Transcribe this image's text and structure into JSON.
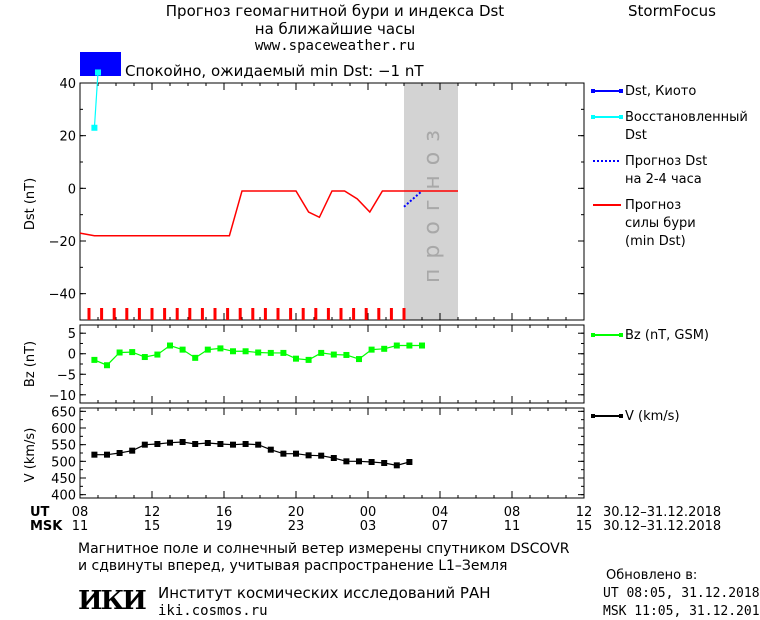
{
  "header": {
    "title_line1": "Прогноз геомагнитной бури и индекса Dst",
    "title_line2": "на ближайшие часы",
    "site": "www.spaceweather.ru",
    "brand": "StormFocus"
  },
  "status": {
    "text": "Спокойно, ожидаемый min Dst: −1 nT",
    "color": "#0000ff"
  },
  "forecast_label": "прогноз",
  "chart_data": [
    {
      "type": "line",
      "ylabel": "Dst (nT)",
      "ylim": [
        -50,
        40
      ],
      "yticks": [
        40,
        20,
        0,
        -20,
        -40
      ],
      "xlim": [
        0,
        28
      ],
      "forecast_region": [
        18,
        21
      ],
      "series": [
        {
          "name": "Dst, Киото",
          "color": "#0000ff",
          "x": [],
          "y": []
        },
        {
          "name": "Восстановленный Dst",
          "color": "#00ffff",
          "x": [
            0.8,
            1.0
          ],
          "y": [
            23,
            44
          ]
        },
        {
          "name": "Прогноз Dst на 2-4 часа",
          "color": "#0000ff",
          "x": [
            18.0,
            18.5,
            19.0
          ],
          "y": [
            -7,
            -4,
            -1
          ]
        },
        {
          "name": "Прогноз силы бури (min Dst)",
          "color": "#ff0000",
          "x": [
            0,
            0.8,
            8.3,
            9.0,
            12.0,
            12.7,
            13.3,
            14.0,
            14.7,
            15.4,
            16.1,
            16.8,
            18.0,
            21.0
          ],
          "y": [
            -17,
            -18,
            -18,
            -1,
            -1,
            -9,
            -11,
            -1,
            -1,
            -4,
            -9,
            -1,
            -1,
            -1
          ]
        }
      ]
    },
    {
      "type": "line",
      "ylabel": "Bz (nT)",
      "ylim": [
        -12,
        7
      ],
      "yticks": [
        5,
        0,
        -5,
        -10
      ],
      "xlim": [
        0,
        28
      ],
      "series": [
        {
          "name": "Bz (nT, GSM)",
          "color": "#00ff00",
          "x": [
            0.8,
            1.5,
            2.2,
            2.9,
            3.6,
            4.3,
            5.0,
            5.7,
            6.4,
            7.1,
            7.8,
            8.5,
            9.2,
            9.9,
            10.6,
            11.3,
            12.0,
            12.7,
            13.4,
            14.1,
            14.8,
            15.5,
            16.2,
            16.9,
            17.6,
            18.3,
            19.0
          ],
          "y": [
            -1.5,
            -2.8,
            0.3,
            0.4,
            -0.8,
            -0.2,
            2.0,
            1.0,
            -1.0,
            1.0,
            1.3,
            0.6,
            0.6,
            0.3,
            0.2,
            0.2,
            -1.2,
            -1.5,
            0.2,
            -0.2,
            -0.3,
            -1.3,
            1.0,
            1.2,
            2.0,
            2.0,
            2.0
          ]
        }
      ]
    },
    {
      "type": "line",
      "ylabel": "V (km/s)",
      "ylim": [
        390,
        660
      ],
      "yticks": [
        650,
        600,
        550,
        500,
        450,
        400
      ],
      "xlim": [
        0,
        28
      ],
      "series": [
        {
          "name": "V (km/s)",
          "color": "#000000",
          "x": [
            0.8,
            1.5,
            2.2,
            2.9,
            3.6,
            4.3,
            5.0,
            5.7,
            6.4,
            7.1,
            7.8,
            8.5,
            9.2,
            9.9,
            10.6,
            11.3,
            12.0,
            12.7,
            13.4,
            14.1,
            14.8,
            15.5,
            16.2,
            16.9,
            17.6,
            18.3
          ],
          "y": [
            520,
            520,
            525,
            532,
            550,
            552,
            556,
            558,
            552,
            555,
            552,
            550,
            552,
            550,
            535,
            523,
            523,
            518,
            517,
            510,
            500,
            500,
            498,
            495,
            488,
            498
          ]
        }
      ]
    }
  ],
  "xaxis": {
    "ut_label": "UT",
    "msk_label": "MSK",
    "ut_ticks": [
      "08",
      "12",
      "16",
      "20",
      "00",
      "04",
      "08",
      "12"
    ],
    "msk_ticks": [
      "11",
      "15",
      "19",
      "23",
      "03",
      "07",
      "11",
      "15"
    ],
    "date_range_ut": "30.12–31.12.2018",
    "date_range_msk": "30.12–31.12.2018"
  },
  "footer": {
    "line1": "Магнитное поле и солнечный ветер измерены спутником DSCOVR",
    "line2": "и сдвинуты вперед, учитывая распространение L1–Земля",
    "logo": "ИКИ",
    "institute": "Институт космических исследований РАН",
    "institute_url": "iki.cosmos.ru",
    "updated_label": "Обновлено в:",
    "updated_ut": "UT  08:05, 31.12.2018",
    "updated_msk": "MSK 11:05, 31.12.2018"
  }
}
